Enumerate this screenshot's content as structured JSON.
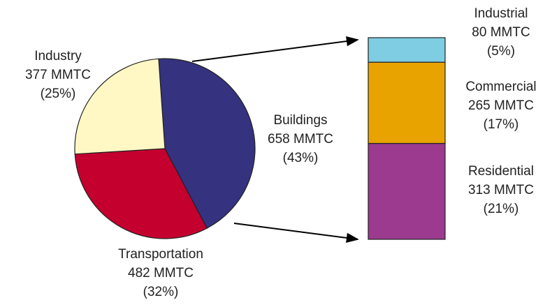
{
  "chart_data": [
    {
      "type": "pie",
      "categories": [
        "Buildings",
        "Transportation",
        "Industry"
      ],
      "values": [
        658,
        482,
        377
      ],
      "value_labels": [
        "658 MMTC",
        "482 MMTC",
        "377 MMTC"
      ],
      "percent_labels": [
        "(43%)",
        "(32%)",
        "(25%)"
      ],
      "colors": [
        "#35327f",
        "#c4002f",
        "#fff8c4"
      ]
    },
    {
      "type": "stacked-column",
      "categories": [
        "Industrial",
        "Commercial",
        "Residential"
      ],
      "values": [
        80,
        265,
        313
      ],
      "value_labels": [
        "80 MMTC",
        "265 MMTC",
        "313 MMTC"
      ],
      "percent_labels": [
        "(5%)",
        "(17%)",
        "(21%)"
      ],
      "colors": [
        "#7ecde3",
        "#e9a300",
        "#9b3a8f"
      ]
    }
  ]
}
